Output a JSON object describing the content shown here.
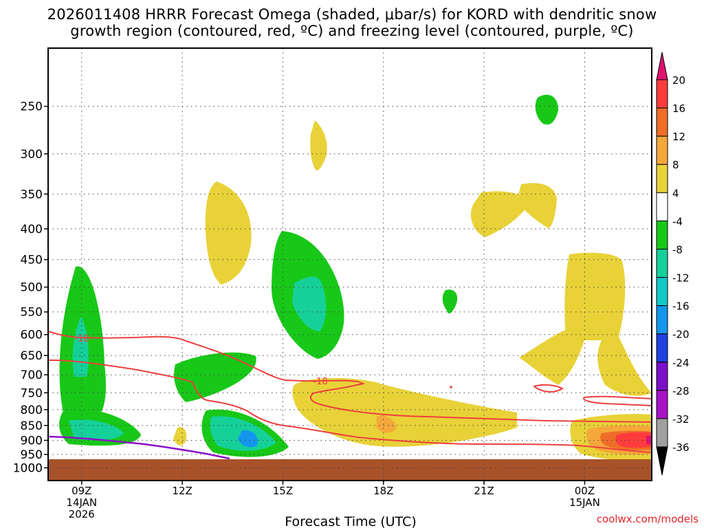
{
  "chart_data": {
    "type": "heatmap",
    "title_line1": "2026011408 HRRR Forecast Omega (shaded, μbar/s) for KORD with dendritic snow",
    "title_line2": "growth region (contoured, red, ºC) and freezing level (contoured, purple, ºC)",
    "xlabel": "Forecast Time (UTC)",
    "ylabel": "",
    "x_range_hours": [
      8,
      26
    ],
    "x_ticks": [
      {
        "hour": 9,
        "label": "09Z",
        "sub1": "14JAN",
        "sub2": "2026"
      },
      {
        "hour": 12,
        "label": "12Z",
        "sub1": "",
        "sub2": ""
      },
      {
        "hour": 15,
        "label": "15Z",
        "sub1": "",
        "sub2": ""
      },
      {
        "hour": 18,
        "label": "18Z",
        "sub1": "",
        "sub2": ""
      },
      {
        "hour": 21,
        "label": "21Z",
        "sub1": "",
        "sub2": ""
      },
      {
        "hour": 24,
        "label": "00Z",
        "sub1": "15JAN",
        "sub2": ""
      }
    ],
    "y_axis": "pressure (hPa), log scale",
    "y_range": [
      200,
      1050
    ],
    "y_ticks": [
      250,
      300,
      350,
      400,
      450,
      500,
      550,
      600,
      650,
      700,
      750,
      800,
      850,
      900,
      950,
      1000
    ],
    "grid": "dotted",
    "colorbar": {
      "levels": [
        20,
        16,
        12,
        8,
        4,
        -4,
        -8,
        -12,
        -16,
        -20,
        -24,
        -28,
        -32,
        -36
      ],
      "colors": [
        "#ff3c3c",
        "#ee6e28",
        "#f4a83a",
        "#e8d238",
        "#ffffff",
        "#18c818",
        "#16d09a",
        "#14c8c8",
        "#1496ee",
        "#2040e0",
        "#7a10c8",
        "#a814c8",
        "#a0a0a0"
      ],
      "top_arrow_color": "#e01070",
      "bottom_arrow_color": "#000000"
    },
    "contour_labels": [
      "-18",
      "-18"
    ],
    "isotherm_value_c": -18,
    "series": [
      {
        "name": "Dendritic growth region isotherm (red, ºC)",
        "value": -18
      },
      {
        "name": "Freezing level (purple, ºC)",
        "value": 0
      }
    ],
    "ground_color": "#a8522a"
  },
  "credit": "coolwx.com/models"
}
